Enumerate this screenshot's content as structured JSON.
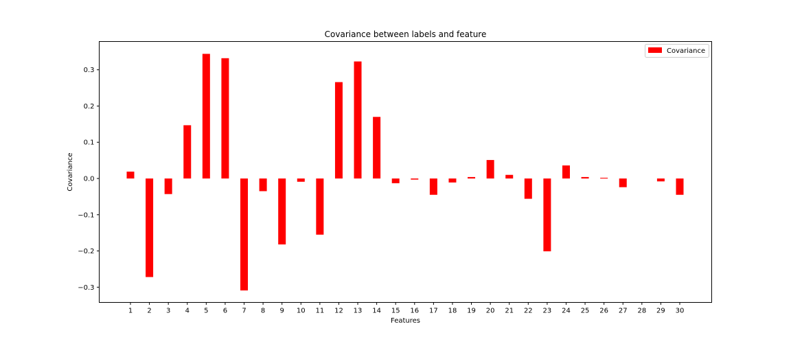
{
  "chart_data": {
    "type": "bar",
    "title": "Covariance between labels and feature",
    "xlabel": "Features",
    "ylabel": "Covariance",
    "categories": [
      "1",
      "2",
      "3",
      "4",
      "5",
      "6",
      "7",
      "8",
      "9",
      "10",
      "11",
      "12",
      "13",
      "14",
      "15",
      "16",
      "17",
      "18",
      "19",
      "20",
      "21",
      "22",
      "23",
      "24",
      "25",
      "26",
      "27",
      "28",
      "29",
      "30"
    ],
    "series": [
      {
        "name": "Covariance",
        "color": "#ff0000",
        "values": [
          0.019,
          -0.272,
          -0.043,
          0.147,
          0.344,
          0.332,
          -0.309,
          -0.035,
          -0.182,
          -0.009,
          -0.155,
          0.266,
          0.323,
          0.17,
          -0.013,
          -0.003,
          -0.045,
          -0.011,
          0.004,
          0.051,
          0.01,
          -0.056,
          -0.201,
          0.036,
          0.004,
          0.002,
          -0.024,
          0.0,
          -0.008,
          -0.045
        ]
      }
    ],
    "ylim": [
      -0.342,
      0.378
    ],
    "yticks": [
      -0.3,
      -0.2,
      -0.1,
      0.0,
      0.1,
      0.2,
      0.3
    ],
    "ytick_labels": [
      "−0.3",
      "−0.2",
      "−0.1",
      "0.0",
      "0.1",
      "0.2",
      "0.3"
    ],
    "grid": false,
    "legend_position": "top-right"
  }
}
